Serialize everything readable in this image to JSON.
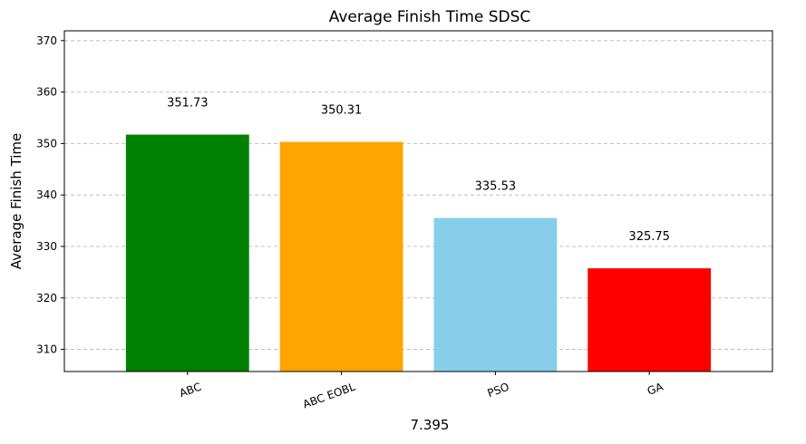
{
  "chart_data": {
    "type": "bar",
    "title": "Average Finish Time SDSC",
    "xlabel": "7.395",
    "ylabel": "Average Finish Time",
    "categories": [
      "ABC",
      "ABC EOBL",
      "PSO",
      "GA"
    ],
    "values": [
      351.73,
      350.31,
      335.53,
      325.75
    ],
    "value_labels": [
      "351.73",
      "350.31",
      "335.53",
      "325.75"
    ],
    "colors": [
      "#008000",
      "#ffa500",
      "#87ceeb",
      "#ff0000"
    ],
    "ylim": [
      305.7,
      371.9
    ],
    "yticks": [
      310,
      320,
      330,
      340,
      350,
      360,
      370
    ],
    "ytick_labels": [
      "310",
      "320",
      "330",
      "340",
      "350",
      "360",
      "370"
    ],
    "grid": "y-dashed",
    "xtick_rotation_deg": 20
  }
}
